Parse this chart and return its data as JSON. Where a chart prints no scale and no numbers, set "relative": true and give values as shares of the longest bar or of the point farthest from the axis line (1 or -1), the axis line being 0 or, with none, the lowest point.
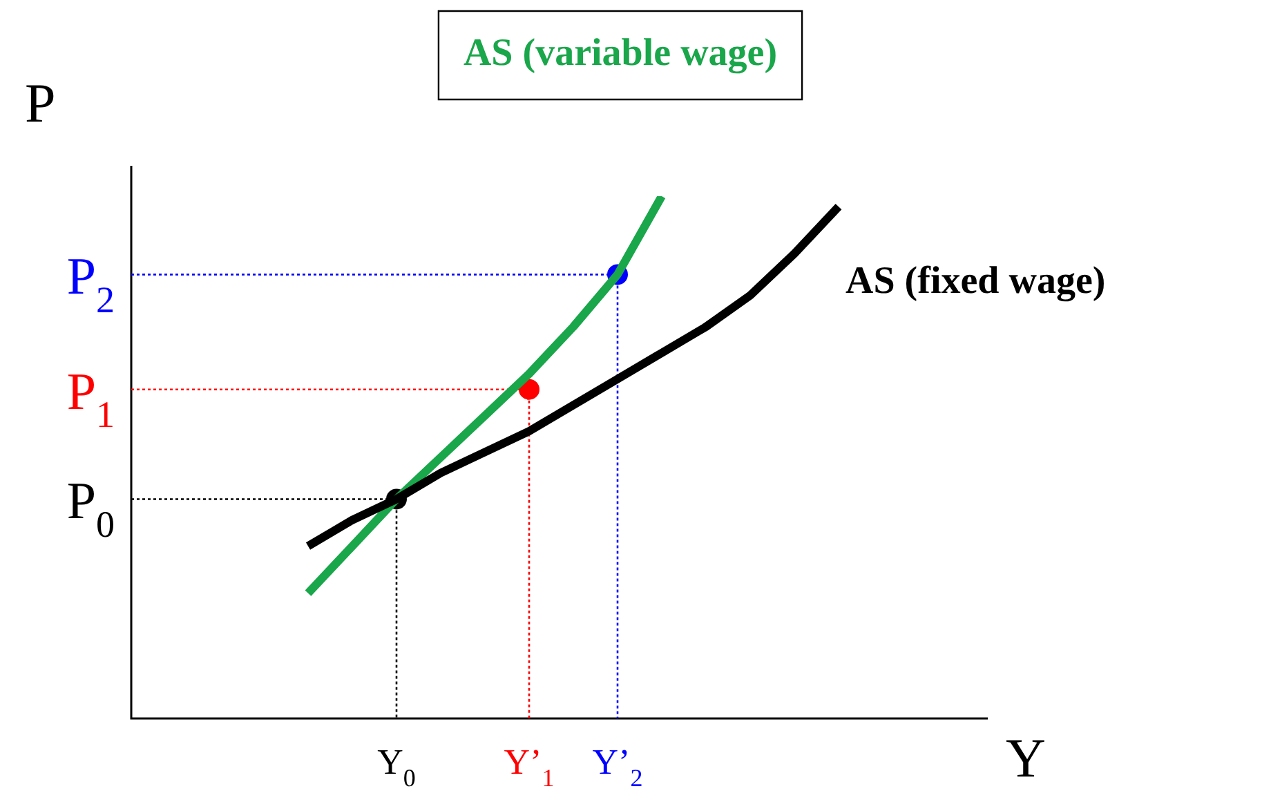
{
  "chart_data": {
    "type": "line",
    "relative": true,
    "xlabel": "Y",
    "ylabel": "P",
    "categories": [
      null,
      null,
      null,
      null,
      null,
      null,
      "Y$_{0}$",
      null,
      null,
      "Y’$_{1}$",
      null,
      "Y’$_{2}$",
      null,
      null,
      null,
      null,
      null,
      null,
      null,
      null
    ],
    "annotations": [
      "P$_{0}$",
      "P$_{1}$",
      "P$_{2}$"
    ],
    "legend": false,
    "marker": "none",
    "line_style": "solid",
    "series": [
      {
        "name": "AS (fixed wage)",
        "color": "#000000",
        "values": [
          null,
          null,
          null,
          null,
          0.33,
          0.38,
          0.42,
          0.47,
          0.51,
          0.55,
          0.6,
          0.65,
          0.7,
          0.75,
          0.81,
          0.89,
          0.98,
          null,
          null,
          null
        ]
      },
      {
        "name": "AS (variable wage)",
        "color": "#1aa64a",
        "values": [
          null,
          null,
          null,
          null,
          0.24,
          0.33,
          0.42,
          0.5,
          0.58,
          0.66,
          0.75,
          0.85,
          1,
          null,
          null,
          null,
          null,
          null,
          null,
          null
        ]
      },
      {
        "type": "scatter",
        "marker": "circle",
        "colors": [
          null,
          null,
          null,
          null,
          null,
          null,
          "#000000",
          null,
          null,
          "#ff0000",
          null,
          "#0000ff",
          null,
          null,
          null,
          null,
          null,
          null,
          null,
          null
        ],
        "values": [
          null,
          null,
          null,
          null,
          null,
          null,
          0.42,
          null,
          null,
          0.63,
          null,
          0.85,
          null,
          null,
          null,
          null,
          null,
          null,
          null,
          null
        ]
      }
    ]
  }
}
